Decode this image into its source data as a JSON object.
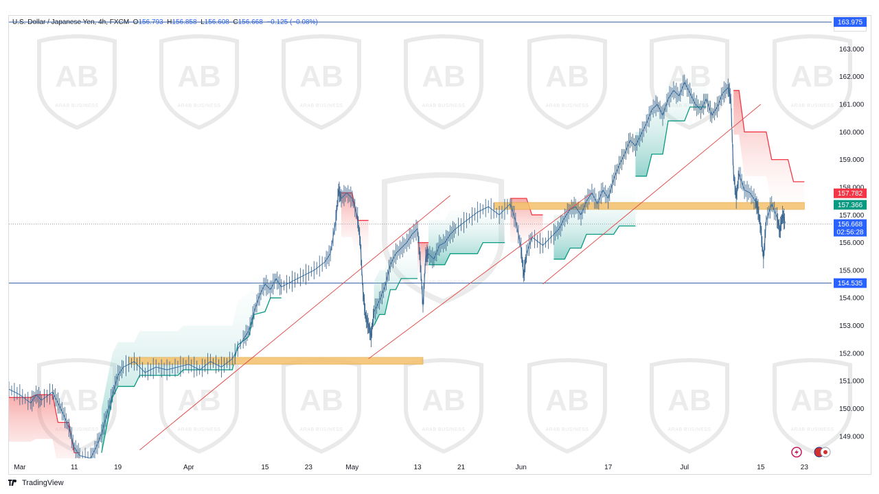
{
  "header": {
    "instrument": "U.S. Dollar / Japanese Yen, 4h, FXCM",
    "o_label": "O",
    "o_value": "156.793",
    "h_label": "H",
    "h_value": "156.858",
    "l_label": "L",
    "l_value": "156.608",
    "c_label": "C",
    "c_value": "156.668",
    "change": "−0.125 (−0.08%)",
    "currency": "JPY"
  },
  "footer": {
    "brand": "TradingView"
  },
  "watermark": {
    "text": "ARAB BUSINESS"
  },
  "colors": {
    "up": "#089981",
    "down": "#f23645",
    "candle_line": "#4a7fb0",
    "zone": "#f5c06b",
    "level_line": "#2962ff",
    "trendline": "#e05252",
    "price_tag": "#2962ff",
    "tag_red": "#f23645",
    "tag_green": "#089981"
  },
  "chart_data": {
    "type": "line",
    "title": "U.S. Dollar / Japanese Yen, 4h, FXCM",
    "xlabel": "",
    "ylabel": "",
    "ylim": [
      148.2,
      164.2
    ],
    "y_ticks": [
      "163.000",
      "162.000",
      "161.000",
      "160.000",
      "159.000",
      "158.000",
      "157.000",
      "156.000",
      "155.000",
      "154.000",
      "153.000",
      "152.000",
      "151.000",
      "150.000",
      "149.000"
    ],
    "x_ticks": [
      {
        "label": "Mar",
        "day": 0
      },
      {
        "label": "11",
        "day": 10
      },
      {
        "label": "19",
        "day": 18
      },
      {
        "label": "Apr",
        "day": 31
      },
      {
        "label": "15",
        "day": 45
      },
      {
        "label": "23",
        "day": 53
      },
      {
        "label": "May",
        "day": 61
      },
      {
        "label": "13",
        "day": 73
      },
      {
        "label": "21",
        "day": 81
      },
      {
        "label": "Jun",
        "day": 92
      },
      {
        "label": "17",
        "day": 108
      },
      {
        "label": "Jul",
        "day": 122
      },
      {
        "label": "15",
        "day": 136
      },
      {
        "label": "23",
        "day": 144
      }
    ],
    "x_range_days": [
      -2,
      149
    ],
    "price_path": [
      [
        -2,
        150.7
      ],
      [
        0,
        150.5
      ],
      [
        2,
        150.2
      ],
      [
        3,
        150.5
      ],
      [
        4,
        150.3
      ],
      [
        6,
        150.6
      ],
      [
        7,
        150.2
      ],
      [
        8,
        149.8
      ],
      [
        9,
        149.3
      ],
      [
        10,
        148.6
      ],
      [
        11,
        148.3
      ],
      [
        13,
        148.2
      ],
      [
        14,
        148.6
      ],
      [
        15,
        149.1
      ],
      [
        16,
        149.8
      ],
      [
        17,
        150.5
      ],
      [
        18,
        151.2
      ],
      [
        19,
        151.5
      ],
      [
        21,
        151.7
      ],
      [
        23,
        151.3
      ],
      [
        25,
        151.5
      ],
      [
        27,
        151.4
      ],
      [
        29,
        151.5
      ],
      [
        31,
        151.6
      ],
      [
        33,
        151.4
      ],
      [
        35,
        151.7
      ],
      [
        37,
        151.5
      ],
      [
        39,
        151.8
      ],
      [
        41,
        152.5
      ],
      [
        42,
        152.8
      ],
      [
        43,
        153.5
      ],
      [
        44,
        154.1
      ],
      [
        45,
        154.5
      ],
      [
        46,
        154.3
      ],
      [
        47,
        154.7
      ],
      [
        48,
        154.4
      ],
      [
        50,
        154.6
      ],
      [
        52,
        154.8
      ],
      [
        54,
        155.0
      ],
      [
        56,
        155.3
      ],
      [
        57,
        155.6
      ],
      [
        58,
        156.8
      ],
      [
        58.5,
        157.9
      ],
      [
        59,
        157.6
      ],
      [
        60,
        157.8
      ],
      [
        61,
        157.6
      ],
      [
        62,
        156.9
      ],
      [
        62.5,
        156.0
      ],
      [
        63,
        154.2
      ],
      [
        63.5,
        153.3
      ],
      [
        64,
        153.0
      ],
      [
        64.5,
        152.6
      ],
      [
        65,
        153.5
      ],
      [
        66,
        153.9
      ],
      [
        67,
        154.4
      ],
      [
        68,
        155.2
      ],
      [
        69,
        155.6
      ],
      [
        70,
        155.8
      ],
      [
        71,
        156.0
      ],
      [
        72,
        156.3
      ],
      [
        73,
        156.5
      ],
      [
        73.5,
        155.3
      ],
      [
        74,
        153.7
      ],
      [
        74.5,
        155.5
      ],
      [
        75,
        155.6
      ],
      [
        76,
        155.4
      ],
      [
        77,
        155.9
      ],
      [
        78,
        156.0
      ],
      [
        79,
        156.3
      ],
      [
        80,
        156.5
      ],
      [
        82,
        156.8
      ],
      [
        84,
        157.1
      ],
      [
        86,
        157.3
      ],
      [
        88,
        157.0
      ],
      [
        90,
        157.4
      ],
      [
        91,
        156.8
      ],
      [
        92,
        155.8
      ],
      [
        92.5,
        154.8
      ],
      [
        93,
        155.6
      ],
      [
        94,
        156.2
      ],
      [
        96,
        155.9
      ],
      [
        98,
        156.3
      ],
      [
        99,
        156.5
      ],
      [
        100,
        156.9
      ],
      [
        101,
        157.2
      ],
      [
        102,
        157.3
      ],
      [
        103,
        157.0
      ],
      [
        104,
        157.5
      ],
      [
        105,
        157.8
      ],
      [
        106,
        157.4
      ],
      [
        107,
        157.9
      ],
      [
        108,
        157.6
      ],
      [
        109,
        158.3
      ],
      [
        110,
        158.8
      ],
      [
        111,
        159.2
      ],
      [
        112,
        159.7
      ],
      [
        113,
        159.5
      ],
      [
        114,
        159.9
      ],
      [
        115,
        160.3
      ],
      [
        116,
        160.8
      ],
      [
        117,
        161.0
      ],
      [
        118,
        160.6
      ],
      [
        119,
        161.2
      ],
      [
        120,
        161.5
      ],
      [
        121,
        161.3
      ],
      [
        122,
        161.8
      ],
      [
        123,
        161.4
      ],
      [
        124,
        161.0
      ],
      [
        125,
        160.8
      ],
      [
        126,
        161.2
      ],
      [
        127,
        160.6
      ],
      [
        128,
        160.9
      ],
      [
        129,
        161.4
      ],
      [
        130,
        161.6
      ],
      [
        130.5,
        161.2
      ],
      [
        131,
        158.5
      ],
      [
        131.5,
        157.6
      ],
      [
        132,
        158.5
      ],
      [
        133,
        157.9
      ],
      [
        134,
        157.8
      ],
      [
        135,
        157.5
      ],
      [
        135.5,
        157.2
      ],
      [
        136,
        156.5
      ],
      [
        136.5,
        155.4
      ],
      [
        137,
        156.8
      ],
      [
        138,
        157.4
      ],
      [
        139,
        156.9
      ],
      [
        139.5,
        156.4
      ],
      [
        140,
        157.0
      ],
      [
        140.5,
        156.7
      ]
    ],
    "supertrend_segments": [
      {
        "dir": "down",
        "points": [
          [
            -2,
            150.4
          ],
          [
            2,
            150.4
          ],
          [
            3,
            150.5
          ],
          [
            6,
            150.5
          ],
          [
            7,
            149.5
          ],
          [
            9,
            149.5
          ],
          [
            10,
            148.4
          ],
          [
            11,
            148.4
          ]
        ]
      },
      {
        "dir": "up",
        "points": [
          [
            15,
            148.4
          ],
          [
            16,
            149.4
          ],
          [
            17,
            150.4
          ],
          [
            18,
            150.8
          ],
          [
            21,
            150.8
          ],
          [
            22,
            151.2
          ],
          [
            29,
            151.2
          ],
          [
            30,
            151.4
          ],
          [
            39,
            151.4
          ],
          [
            40,
            152.3
          ],
          [
            42,
            152.6
          ],
          [
            43,
            153.4
          ],
          [
            45,
            153.5
          ],
          [
            46,
            154.0
          ],
          [
            48,
            154.0
          ]
        ]
      },
      {
        "dir": "down",
        "points": [
          [
            59,
            157.8
          ],
          [
            61,
            157.8
          ],
          [
            62,
            156.8
          ],
          [
            64,
            156.8
          ]
        ]
      },
      {
        "dir": "up",
        "points": [
          [
            65,
            153.0
          ],
          [
            66,
            153.4
          ],
          [
            67,
            153.4
          ],
          [
            68,
            154.3
          ],
          [
            69,
            154.3
          ],
          [
            70,
            154.7
          ],
          [
            73,
            154.7
          ]
        ]
      },
      {
        "dir": "down",
        "points": [
          [
            73,
            156.0
          ],
          [
            75,
            156.0
          ]
        ]
      },
      {
        "dir": "up",
        "points": [
          [
            75,
            155.2
          ],
          [
            78,
            155.2
          ],
          [
            79,
            155.6
          ],
          [
            84,
            155.6
          ],
          [
            85,
            156.0
          ],
          [
            89,
            156.0
          ]
        ]
      },
      {
        "dir": "down",
        "points": [
          [
            90,
            157.6
          ],
          [
            93,
            157.6
          ],
          [
            94,
            157.0
          ],
          [
            96,
            157.0
          ]
        ]
      },
      {
        "dir": "up",
        "points": [
          [
            98,
            155.4
          ],
          [
            100,
            155.4
          ],
          [
            101,
            155.8
          ],
          [
            103,
            155.8
          ],
          [
            104,
            156.3
          ],
          [
            109,
            156.3
          ],
          [
            110,
            156.6
          ],
          [
            113,
            156.6
          ]
        ]
      },
      {
        "dir": "up",
        "points": [
          [
            113,
            158.4
          ],
          [
            115,
            158.4
          ],
          [
            116,
            159.2
          ],
          [
            118,
            159.2
          ],
          [
            119,
            160.4
          ],
          [
            122,
            160.4
          ],
          [
            123,
            160.9
          ],
          [
            126,
            160.9
          ]
        ]
      },
      {
        "dir": "down",
        "points": [
          [
            131,
            161.5
          ],
          [
            132,
            161.5
          ],
          [
            133,
            160.0
          ],
          [
            137,
            160.0
          ],
          [
            138,
            159.0
          ],
          [
            141,
            159.0
          ],
          [
            142,
            158.2
          ],
          [
            144,
            158.2
          ]
        ]
      }
    ],
    "horizontal_levels": [
      {
        "price": 163.975,
        "label": "163.975"
      },
      {
        "price": 154.535,
        "label": "154.535"
      }
    ],
    "zones": [
      {
        "day_start": 20,
        "day_end": 74,
        "price_low": 151.6,
        "price_high": 151.85
      },
      {
        "day_start": 87,
        "day_end": 144,
        "price_low": 157.2,
        "price_high": 157.45
      }
    ],
    "trendlines": [
      {
        "from": [
          22,
          148.5
        ],
        "to": [
          79,
          157.7
        ]
      },
      {
        "from": [
          64,
          151.8
        ],
        "to": [
          105,
          157.8
        ]
      },
      {
        "from": [
          96,
          154.5
        ],
        "to": [
          136,
          161.0
        ]
      }
    ],
    "price_tags": [
      {
        "label": "157.782",
        "price": 157.782,
        "color": "red"
      },
      {
        "label": "157.366",
        "price": 157.366,
        "color": "green"
      },
      {
        "label": "156.668",
        "price": 156.668,
        "color": "blue",
        "sub": "02:56:28"
      }
    ],
    "current_price": 156.668,
    "grid": false,
    "legend": "none"
  }
}
